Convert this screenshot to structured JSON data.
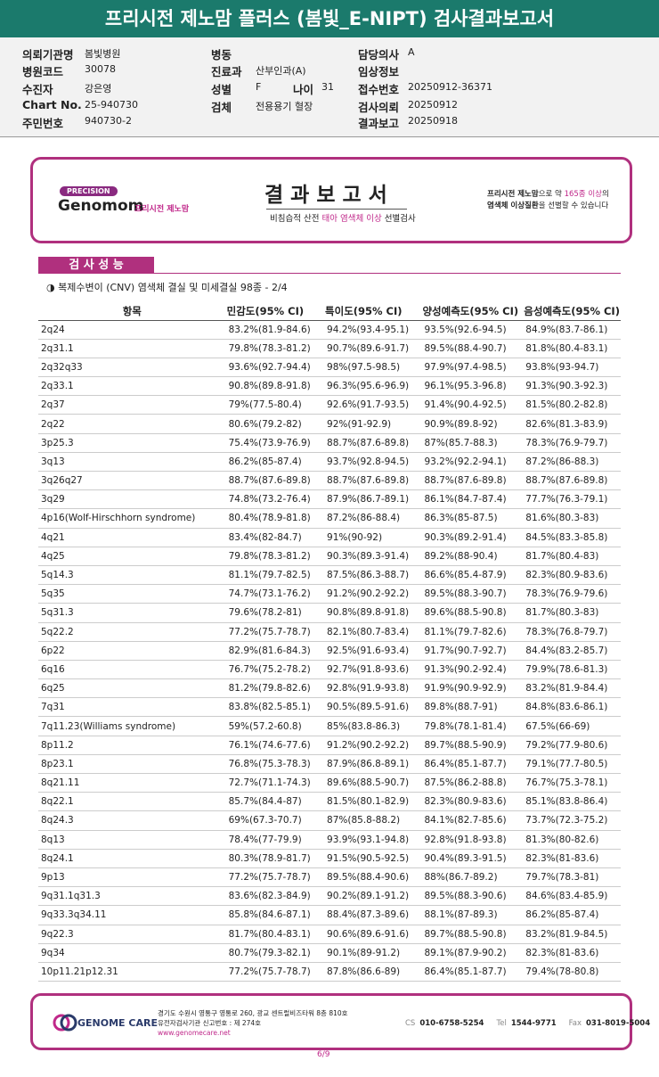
{
  "header": {
    "title": "프리시전 제노맘 플러스 (봄빛_E-NIPT) 검사결과보고서"
  },
  "info": {
    "col1": [
      [
        "의뢰기관명",
        "봄빛병원"
      ],
      [
        "병원코드",
        "30078"
      ],
      [
        "수진자",
        "강은영"
      ],
      [
        "Chart No.",
        "25-940730"
      ],
      [
        "주민번호",
        "940730-2"
      ]
    ],
    "col2": [
      [
        "병동"
      ],
      [
        "진료과",
        "산부인과(A)"
      ],
      [
        "성별",
        "F",
        "나이",
        "31"
      ],
      [
        "검체",
        "전용용기 혈장"
      ]
    ],
    "col3": [
      [
        "담당의사",
        "A"
      ],
      [
        "임상정보"
      ],
      [
        "접수번호",
        "20250912-36371"
      ],
      [
        "검사의뢰",
        "20250912"
      ],
      [
        "결과보고",
        "20250918"
      ]
    ]
  },
  "report_card": {
    "badge": "PRECISION",
    "logo": "Genomom",
    "logo_sub": "프리시전 제노맘",
    "title": "결 과 보 고 서",
    "subtitle": [
      "비침습적 산전 ",
      "태아 염색체 이상",
      " 선별검사"
    ],
    "note1": [
      "프리시전 제노맘",
      "으로 약 ",
      "165종 이상",
      "의"
    ],
    "note2": [
      "염색체 이상질환",
      "을 선별할 수 있습니다"
    ]
  },
  "section": {
    "tab": "검 사 성 능",
    "heading": "◑ 복제수변이 (CNV) 염색체 결실 및 미세결실 98종 - 2/4"
  },
  "table": {
    "columns": [
      "항목",
      "민감도(95% CI)",
      "특이도(95% CI)",
      "양성예측도(95% CI)",
      "음성예측도(95% CI)"
    ],
    "rows": [
      [
        "2q24",
        "83.2%(81.9-84.6)",
        "94.2%(93.4-95.1)",
        "93.5%(92.6-94.5)",
        "84.9%(83.7-86.1)"
      ],
      [
        "2q31.1",
        "79.8%(78.3-81.2)",
        "90.7%(89.6-91.7)",
        "89.5%(88.4-90.7)",
        "81.8%(80.4-83.1)"
      ],
      [
        "2q32q33",
        "93.6%(92.7-94.4)",
        "98%(97.5-98.5)",
        "97.9%(97.4-98.5)",
        "93.8%(93-94.7)"
      ],
      [
        "2q33.1",
        "90.8%(89.8-91.8)",
        "96.3%(95.6-96.9)",
        "96.1%(95.3-96.8)",
        "91.3%(90.3-92.3)"
      ],
      [
        "2q37",
        "79%(77.5-80.4)",
        "92.6%(91.7-93.5)",
        "91.4%(90.4-92.5)",
        "81.5%(80.2-82.8)"
      ],
      [
        "2q22",
        "80.6%(79.2-82)",
        "92%(91-92.9)",
        "90.9%(89.8-92)",
        "82.6%(81.3-83.9)"
      ],
      [
        "3p25.3",
        "75.4%(73.9-76.9)",
        "88.7%(87.6-89.8)",
        "87%(85.7-88.3)",
        "78.3%(76.9-79.7)"
      ],
      [
        "3q13",
        "86.2%(85-87.4)",
        "93.7%(92.8-94.5)",
        "93.2%(92.2-94.1)",
        "87.2%(86-88.3)"
      ],
      [
        "3q26q27",
        "88.7%(87.6-89.8)",
        "88.7%(87.6-89.8)",
        "88.7%(87.6-89.8)",
        "88.7%(87.6-89.8)"
      ],
      [
        "3q29",
        "74.8%(73.2-76.4)",
        "87.9%(86.7-89.1)",
        "86.1%(84.7-87.4)",
        "77.7%(76.3-79.1)"
      ],
      [
        "4p16(Wolf-Hirschhorn syndrome)",
        "80.4%(78.9-81.8)",
        "87.2%(86-88.4)",
        "86.3%(85-87.5)",
        "81.6%(80.3-83)"
      ],
      [
        "4q21",
        "83.4%(82-84.7)",
        "91%(90-92)",
        "90.3%(89.2-91.4)",
        "84.5%(83.3-85.8)"
      ],
      [
        "4q25",
        "79.8%(78.3-81.2)",
        "90.3%(89.3-91.4)",
        "89.2%(88-90.4)",
        "81.7%(80.4-83)"
      ],
      [
        "5q14.3",
        "81.1%(79.7-82.5)",
        "87.5%(86.3-88.7)",
        "86.6%(85.4-87.9)",
        "82.3%(80.9-83.6)"
      ],
      [
        "5q35",
        "74.7%(73.1-76.2)",
        "91.2%(90.2-92.2)",
        "89.5%(88.3-90.7)",
        "78.3%(76.9-79.6)"
      ],
      [
        "5q31.3",
        "79.6%(78.2-81)",
        "90.8%(89.8-91.8)",
        "89.6%(88.5-90.8)",
        "81.7%(80.3-83)"
      ],
      [
        "5q22.2",
        "77.2%(75.7-78.7)",
        "82.1%(80.7-83.4)",
        "81.1%(79.7-82.6)",
        "78.3%(76.8-79.7)"
      ],
      [
        "6p22",
        "82.9%(81.6-84.3)",
        "92.5%(91.6-93.4)",
        "91.7%(90.7-92.7)",
        "84.4%(83.2-85.7)"
      ],
      [
        "6q16",
        "76.7%(75.2-78.2)",
        "92.7%(91.8-93.6)",
        "91.3%(90.2-92.4)",
        "79.9%(78.6-81.3)"
      ],
      [
        "6q25",
        "81.2%(79.8-82.6)",
        "92.8%(91.9-93.8)",
        "91.9%(90.9-92.9)",
        "83.2%(81.9-84.4)"
      ],
      [
        "7q31",
        "83.8%(82.5-85.1)",
        "90.5%(89.5-91.6)",
        "89.8%(88.7-91)",
        "84.8%(83.6-86.1)"
      ],
      [
        "7q11.23(Williams syndrome)",
        "59%(57.2-60.8)",
        "85%(83.8-86.3)",
        "79.8%(78.1-81.4)",
        "67.5%(66-69)"
      ],
      [
        "8p11.2",
        "76.1%(74.6-77.6)",
        "91.2%(90.2-92.2)",
        "89.7%(88.5-90.9)",
        "79.2%(77.9-80.6)"
      ],
      [
        "8p23.1",
        "76.8%(75.3-78.3)",
        "87.9%(86.8-89.1)",
        "86.4%(85.1-87.7)",
        "79.1%(77.7-80.5)"
      ],
      [
        "8q21.11",
        "72.7%(71.1-74.3)",
        "89.6%(88.5-90.7)",
        "87.5%(86.2-88.8)",
        "76.7%(75.3-78.1)"
      ],
      [
        "8q22.1",
        "85.7%(84.4-87)",
        "81.5%(80.1-82.9)",
        "82.3%(80.9-83.6)",
        "85.1%(83.8-86.4)"
      ],
      [
        "8q24.3",
        "69%(67.3-70.7)",
        "87%(85.8-88.2)",
        "84.1%(82.7-85.6)",
        "73.7%(72.3-75.2)"
      ],
      [
        "8q13",
        "78.4%(77-79.9)",
        "93.9%(93.1-94.8)",
        "92.8%(91.8-93.8)",
        "81.3%(80-82.6)"
      ],
      [
        "8q24.1",
        "80.3%(78.9-81.7)",
        "91.5%(90.5-92.5)",
        "90.4%(89.3-91.5)",
        "82.3%(81-83.6)"
      ],
      [
        "9p13",
        "77.2%(75.7-78.7)",
        "89.5%(88.4-90.6)",
        "88%(86.7-89.2)",
        "79.7%(78.3-81)"
      ],
      [
        "9q31.1q31.3",
        "83.6%(82.3-84.9)",
        "90.2%(89.1-91.2)",
        "89.5%(88.3-90.6)",
        "84.6%(83.4-85.9)"
      ],
      [
        "9q33.3q34.11",
        "85.8%(84.6-87.1)",
        "88.4%(87.3-89.6)",
        "88.1%(87-89.3)",
        "86.2%(85-87.4)"
      ],
      [
        "9q22.3",
        "81.7%(80.4-83.1)",
        "90.6%(89.6-91.6)",
        "89.7%(88.5-90.8)",
        "83.2%(81.9-84.5)"
      ],
      [
        "9q34",
        "80.7%(79.3-82.1)",
        "90.1%(89-91.2)",
        "89.1%(87.9-90.2)",
        "82.3%(81-83.6)"
      ],
      [
        "10p11.21p12.31",
        "77.2%(75.7-78.7)",
        "87.8%(86.6-89)",
        "86.4%(85.1-87.7)",
        "79.4%(78-80.8)"
      ]
    ]
  },
  "footer": {
    "logo": "GENOME CARE",
    "address": "경기도 수원시 영통구 영통로 260, 광교 센트럴비즈타워 8층 810호",
    "license": "유전자검사기관 신고번호 : 제 274호",
    "url": "www.genomecare.net",
    "contacts": [
      [
        "CS",
        "010-6758-5254"
      ],
      [
        "Tel",
        "1544-9771"
      ],
      [
        "Fax",
        "031-8019-5004"
      ]
    ],
    "page": "6/9"
  }
}
